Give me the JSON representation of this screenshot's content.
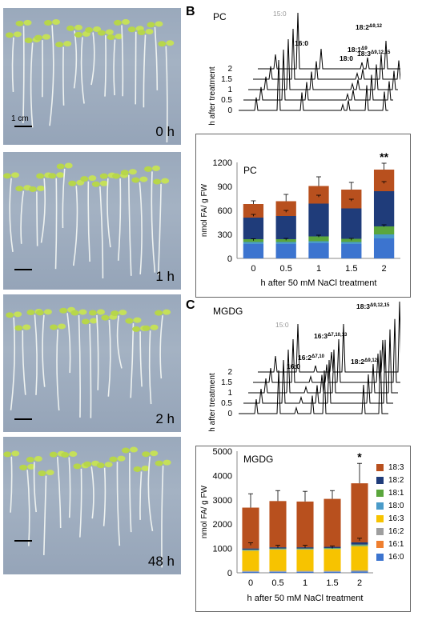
{
  "photos": [
    {
      "label": "0 h",
      "scale_text": "1 cm"
    },
    {
      "label": "1 h",
      "scale_text": ""
    },
    {
      "label": "2 h",
      "scale_text": ""
    },
    {
      "label": "48 h",
      "scale_text": ""
    }
  ],
  "panelB": {
    "letter": "B",
    "trace_title": "PC",
    "trace_ylabel": "h after treatment",
    "trace_levels": [
      "2",
      "1.5",
      "1",
      "0.5",
      "0"
    ],
    "peak_labels": [
      {
        "id": "c15",
        "text": "15:0"
      },
      {
        "id": "c160",
        "text": "16:0"
      },
      {
        "id": "c182",
        "text": "18:2",
        "sup": "Δ9,12"
      },
      {
        "id": "c181",
        "text": "18:1",
        "sup": "Δ9"
      },
      {
        "id": "c183",
        "text": "18:3",
        "sup": "Δ9,12,15"
      },
      {
        "id": "c180",
        "text": "18:0"
      }
    ]
  },
  "panelC": {
    "letter": "C",
    "trace_title": "MGDG",
    "trace_ylabel": "h after treatment",
    "trace_levels": [
      "2",
      "1.5",
      "1",
      "0.5",
      "0"
    ],
    "peak_labels": [
      {
        "id": "c183",
        "text": "18:3",
        "sup": "Δ9,12,15"
      },
      {
        "id": "c163",
        "text": "16:3",
        "sup": "Δ7,10,13"
      },
      {
        "id": "c15",
        "text": "15:0"
      },
      {
        "id": "c162",
        "text": "16:2",
        "sup": "Δ7,10"
      },
      {
        "id": "c182",
        "text": "18:2",
        "sup": "Δ9,12"
      },
      {
        "id": "c160",
        "text": "16:0"
      }
    ]
  },
  "legend": {
    "items": [
      {
        "name": "18:3",
        "color": "#b8501e"
      },
      {
        "name": "18:2",
        "color": "#1f3c7a"
      },
      {
        "name": "18:1",
        "color": "#5aa63c"
      },
      {
        "name": "18:0",
        "color": "#4a9bc9"
      },
      {
        "name": "16:3",
        "color": "#f7c300"
      },
      {
        "name": "16:2",
        "color": "#9e9e9e"
      },
      {
        "name": "16:1",
        "color": "#ef7f2f"
      },
      {
        "name": "16:0",
        "color": "#3c74cf"
      }
    ]
  },
  "chart_data": [
    {
      "type": "bar",
      "stacked": true,
      "title": "PC",
      "xlabel": "h after 50 mM NaCl treatment",
      "ylabel": "nmol FA/ g FW",
      "categories": [
        "0",
        "0.5",
        "1",
        "1.5",
        "2"
      ],
      "ylim": [
        0,
        1200
      ],
      "yticks": [
        0,
        300,
        600,
        900,
        1200
      ],
      "significance": [
        "",
        "",
        "",
        "",
        "**"
      ],
      "series": [
        {
          "name": "16:0",
          "values": [
            180,
            180,
            190,
            180,
            250
          ]
        },
        {
          "name": "18:0",
          "values": [
            25,
            25,
            25,
            25,
            50
          ]
        },
        {
          "name": "18:1",
          "values": [
            35,
            35,
            60,
            40,
            100
          ]
        },
        {
          "name": "18:2",
          "values": [
            270,
            290,
            410,
            380,
            440
          ]
        },
        {
          "name": "18:3",
          "values": [
            170,
            185,
            220,
            235,
            270
          ]
        }
      ],
      "error_top": [
        720,
        800,
        1020,
        950,
        1190
      ],
      "error_18_2": [
        550,
        600,
        790,
        740,
        960
      ],
      "error_low": [
        245,
        250,
        290,
        250,
        420
      ]
    },
    {
      "type": "bar",
      "stacked": true,
      "title": "MGDG",
      "xlabel": "h after 50 mM NaCl treatment",
      "ylabel": "nmol FA/ g FW",
      "categories": [
        "0",
        "0.5",
        "1",
        "1.5",
        "2"
      ],
      "ylim": [
        0,
        5000
      ],
      "yticks": [
        0,
        1000,
        2000,
        3000,
        4000,
        5000
      ],
      "significance": [
        "",
        "",
        "",
        "",
        "*"
      ],
      "series": [
        {
          "name": "16:0",
          "values": [
            40,
            40,
            40,
            40,
            50
          ]
        },
        {
          "name": "16:2",
          "values": [
            40,
            40,
            40,
            40,
            50
          ]
        },
        {
          "name": "16:3",
          "values": [
            830,
            880,
            880,
            900,
            1000
          ]
        },
        {
          "name": "18:0",
          "values": [
            20,
            20,
            20,
            20,
            30
          ]
        },
        {
          "name": "18:1",
          "values": [
            20,
            20,
            20,
            20,
            30
          ]
        },
        {
          "name": "18:2",
          "values": [
            50,
            50,
            50,
            50,
            90
          ]
        },
        {
          "name": "18:3",
          "values": [
            1680,
            1900,
            1880,
            1970,
            2430
          ]
        }
      ],
      "error_top": [
        3250,
        3380,
        3350,
        3380,
        4500
      ],
      "error_mid": [
        1230,
        1130,
        1130,
        1100,
        1420
      ]
    }
  ]
}
